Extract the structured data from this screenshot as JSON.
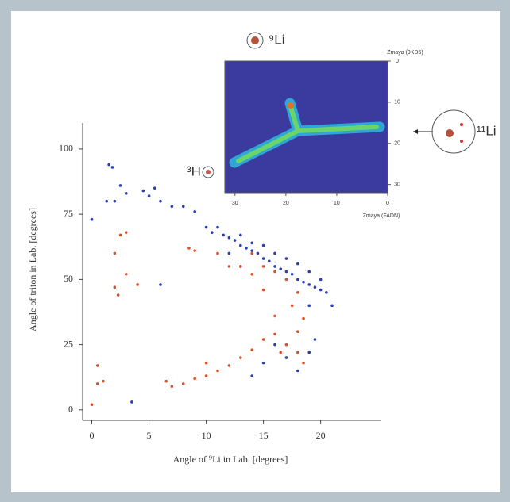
{
  "chart_data": [
    {
      "type": "scatter",
      "x_label": "Angle of ⁹Li in Lab. [degrees]",
      "y_label": "Angle of triton in Lab. [degrees]",
      "annotations": [
        "³H",
        "⁹Li",
        "¹¹Li"
      ],
      "xlim": [
        -0.8,
        25.3
      ],
      "ylim": [
        -4,
        110
      ],
      "xticks": [
        0,
        5,
        10,
        15,
        20
      ],
      "yticks": [
        0,
        25,
        50,
        75,
        100
      ],
      "series": [
        {
          "color": "#2a3fb0",
          "x": [
            0,
            1.5,
            1.8,
            1.3,
            2,
            2.5,
            3,
            4.5,
            5.5,
            5,
            6,
            7,
            8,
            9,
            10,
            10.5,
            11,
            11.5,
            12,
            12.5,
            13,
            13.5,
            14,
            14.5,
            15,
            15.5,
            16,
            16.5,
            17,
            17.5,
            18,
            18.5,
            19,
            19.5,
            20,
            20.5,
            21,
            13,
            14,
            15,
            16,
            17,
            18,
            19,
            20,
            19,
            19.5,
            19,
            18,
            17,
            16,
            15,
            14,
            6,
            3.5,
            12,
            13
          ],
          "values": [
            73,
            94,
            93,
            80,
            80,
            86,
            83,
            84,
            85,
            82,
            80,
            78,
            78,
            76,
            70,
            68,
            70,
            67,
            66,
            65,
            63,
            62,
            61,
            60,
            58,
            57,
            55,
            54,
            53,
            52,
            50,
            49,
            48,
            47,
            46,
            45,
            40,
            67,
            64,
            63,
            60,
            58,
            56,
            53,
            50,
            40,
            27,
            22,
            15,
            20,
            25,
            18,
            13,
            48,
            3,
            60,
            55
          ]
        },
        {
          "color": "#d9502a",
          "x": [
            0,
            0.5,
            0.5,
            1,
            2,
            2.5,
            3,
            3,
            2,
            2.3,
            4,
            7,
            8,
            9,
            10,
            11,
            12,
            13,
            14,
            15,
            16,
            17,
            18,
            18.5,
            16,
            15,
            14,
            13,
            12,
            11,
            14,
            15,
            16,
            17,
            18,
            18.5,
            18,
            17.5,
            9,
            8.5,
            16.5,
            10,
            6.5
          ],
          "values": [
            2,
            17,
            10,
            11,
            60,
            67,
            68,
            52,
            47,
            44,
            48,
            9,
            10,
            12,
            13,
            15,
            17,
            20,
            23,
            27,
            29,
            25,
            22,
            18,
            36,
            46,
            52,
            55,
            55,
            60,
            60,
            55,
            53,
            50,
            45,
            35,
            30,
            40,
            61,
            62,
            22,
            18,
            11
          ]
        }
      ]
    },
    {
      "type": "heatmap",
      "x_label": "Zmaya (FADN)",
      "y_label": "Zmaya (9KD5)",
      "xlim": [
        32,
        0
      ],
      "ylim": [
        32,
        0
      ],
      "xticks": [
        30,
        20,
        10,
        0
      ],
      "yticks": [
        0,
        10,
        20,
        30
      ]
    }
  ]
}
